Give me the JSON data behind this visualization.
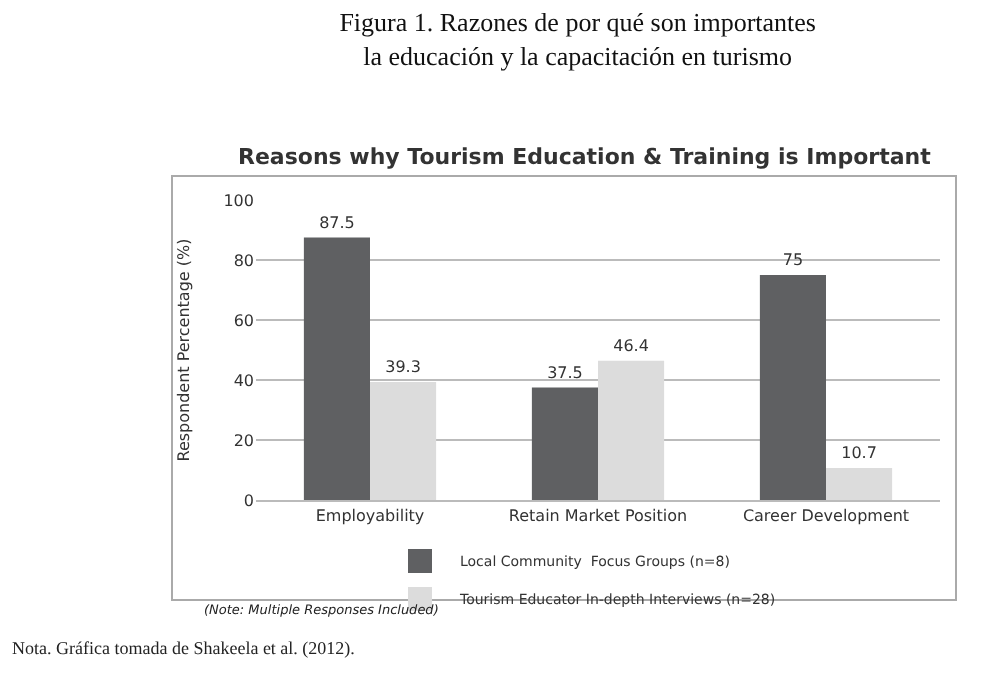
{
  "chart_data": {
    "type": "bar",
    "title": "Figura 1. Razones de por qué son importantes\nla educación y la capacitación en turismo",
    "subtitle": "Reasons why Tourism Education & Training is Important",
    "ylabel": "Respondent Percentage (%)",
    "categories": [
      "Employability",
      "Retain Market Position",
      "Career Development"
    ],
    "series": [
      {
        "name": "Local Community  Focus Groups (n=8)",
        "color": "#5f6062",
        "values": [
          87.5,
          37.5,
          75
        ]
      },
      {
        "name": "Tourism Educator In-depth Interviews (n=28)",
        "color": "#dcdcdc",
        "values": [
          39.3,
          46.4,
          10.7
        ]
      }
    ],
    "ylim": [
      0,
      100
    ],
    "yticks": [
      0,
      20,
      40,
      60,
      80,
      100
    ],
    "grid": "y",
    "legend": "bottom",
    "data_labels": true,
    "annotations": [
      "(Note: Multiple Responses Included)",
      "Nota. Gráfica tomada de Shakeela et al. (2012)."
    ]
  }
}
